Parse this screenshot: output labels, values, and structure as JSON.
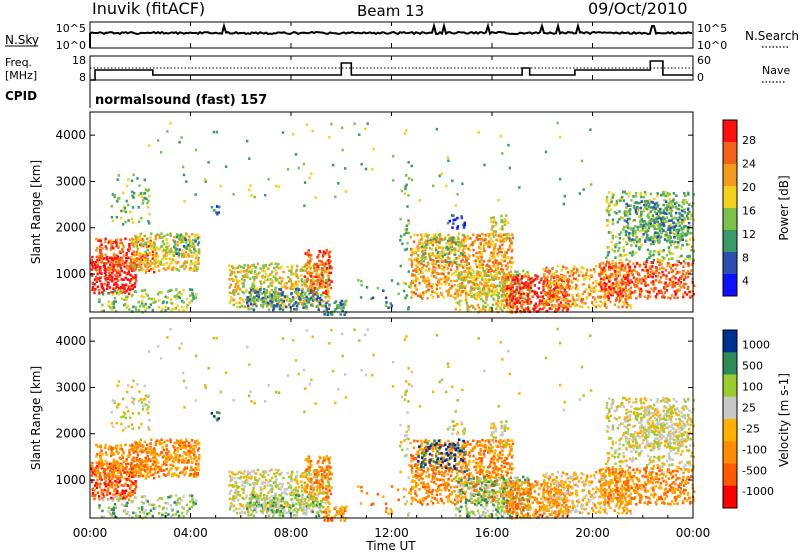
{
  "header": {
    "station": "Inuvik  (fitACF)",
    "beam": "Beam 13",
    "date": "09/Oct/2010"
  },
  "nsky_panel": {
    "left_label": "N.Sky",
    "right_label": "N.Search",
    "left_ticks": [
      "10^5",
      "10^0"
    ],
    "right_ticks": [
      "10^5",
      "10^0"
    ]
  },
  "freq_panel": {
    "left_label_1": "Freq.",
    "left_label_2": "[MHz]",
    "right_label": "Nave",
    "left_ticks": [
      "18",
      "8"
    ],
    "right_ticks": [
      "60",
      "0"
    ]
  },
  "cpid_panel": {
    "label": "CPID",
    "program": "normalsound (fast) 157"
  },
  "x_axis": {
    "label": "Time UT",
    "ticks": [
      "00:00",
      "04:00",
      "08:00",
      "12:00",
      "16:00",
      "20:00",
      "00:00"
    ]
  },
  "colors": {
    "power_scale": [
      "#1010ff",
      "#2e4fb0",
      "#3a9a6a",
      "#7cc24a",
      "#f2d21e",
      "#f49a1e",
      "#f2621a",
      "#ff1010"
    ],
    "velocity_scale": [
      "#ff0000",
      "#ff5a00",
      "#ff8c00",
      "#ffb000",
      "#c8c8c8",
      "#9acd32",
      "#2e8b57",
      "#00308f"
    ]
  },
  "chart_data": [
    {
      "type": "heatmap",
      "title": "",
      "ylabel": "Slant Range [km]",
      "xlabel": "",
      "x_range_hours": [
        0,
        24
      ],
      "ylim": [
        180,
        4500
      ],
      "y_ticks": [
        1000,
        2000,
        3000,
        4000
      ],
      "colorbar_label": "Power [dB]",
      "colorbar_ticks": [
        "28",
        "24",
        "20",
        "16",
        "12",
        "8",
        "4"
      ],
      "colorbar_range": [
        0,
        30
      ]
    },
    {
      "type": "heatmap",
      "title": "",
      "ylabel": "Slant Range [km]",
      "xlabel": "Time UT",
      "x_range_hours": [
        0,
        24
      ],
      "ylim": [
        180,
        4500
      ],
      "y_ticks": [
        1000,
        2000,
        3000,
        4000
      ],
      "colorbar_label": "Velocity [m s-1]",
      "colorbar_ticks": [
        "1000",
        "500",
        "100",
        "25",
        "-25",
        "-100",
        "-500",
        "-1000"
      ],
      "colorbar_range": [
        -1000,
        1000
      ]
    }
  ]
}
